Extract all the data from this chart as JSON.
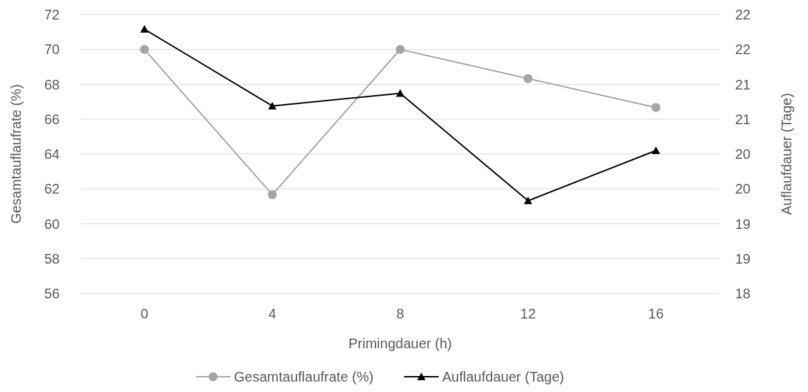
{
  "chart_data": {
    "type": "line",
    "xlabel": "Primingdauer (h)",
    "ylabel": "Gesamtauflaufrate (%)",
    "y2label": "Auflaufdauer (Tage)",
    "categories": [
      "0",
      "4",
      "8",
      "12",
      "16"
    ],
    "series": [
      {
        "name": "Gesamtauflaufrate (%)",
        "color": "#a5a5a5",
        "marker": "circle",
        "values": [
          70,
          61.67,
          70,
          68.33,
          66.67
        ]
      },
      {
        "name": "Auflaufdauer (Tage)",
        "color": "#000000",
        "marker": "triangle",
        "axis": "y2",
        "values": [
          21.79,
          20.69,
          20.87,
          19.33,
          20.05
        ]
      }
    ],
    "ylim": [
      56,
      72
    ],
    "yticks": [
      56,
      58,
      60,
      62,
      64,
      66,
      68,
      70,
      72
    ],
    "y2lim": [
      18,
      22
    ],
    "y2ticks": [
      18,
      {
        "value": 18.5,
        "label": "19"
      },
      19,
      {
        "value": 19.5,
        "label": "20"
      },
      20,
      {
        "value": 20.5,
        "label": "21"
      },
      21,
      {
        "value": 21.5,
        "label": "22"
      },
      22
    ],
    "grid": "y",
    "legend": "bottom",
    "line_style": "solid"
  }
}
